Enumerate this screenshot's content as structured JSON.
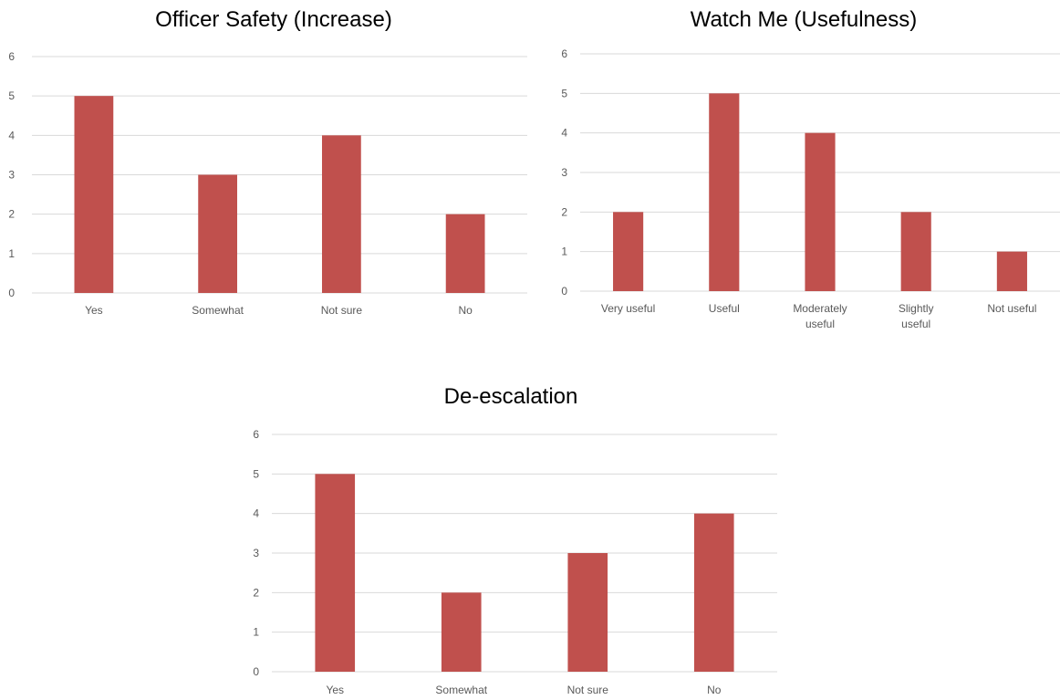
{
  "chart_data": [
    {
      "type": "bar",
      "title": "Officer Safety (Increase)",
      "categories": [
        "Yes",
        "Somewhat",
        "Not sure",
        "No"
      ],
      "values": [
        5,
        3,
        4,
        2
      ],
      "ylim": [
        0,
        6
      ],
      "yticks": [
        0,
        1,
        2,
        3,
        4,
        5,
        6
      ],
      "xlabel": "",
      "ylabel": "",
      "grid": true,
      "color": "#C0504D"
    },
    {
      "type": "bar",
      "title": "Watch Me (Usefulness)",
      "categories": [
        "Very useful",
        "Useful",
        "Moderately useful",
        "Slightly useful",
        "Not useful"
      ],
      "values": [
        2,
        5,
        4,
        2,
        1
      ],
      "ylim": [
        0,
        6
      ],
      "yticks": [
        0,
        1,
        2,
        3,
        4,
        5,
        6
      ],
      "xlabel": "",
      "ylabel": "",
      "grid": true,
      "color": "#C0504D"
    },
    {
      "type": "bar",
      "title": "De-escalation",
      "categories": [
        "Yes",
        "Somewhat",
        "Not sure",
        "No"
      ],
      "values": [
        5,
        2,
        3,
        4
      ],
      "ylim": [
        0,
        6
      ],
      "yticks": [
        0,
        1,
        2,
        3,
        4,
        5,
        6
      ],
      "xlabel": "",
      "ylabel": "",
      "grid": true,
      "color": "#C0504D"
    }
  ]
}
